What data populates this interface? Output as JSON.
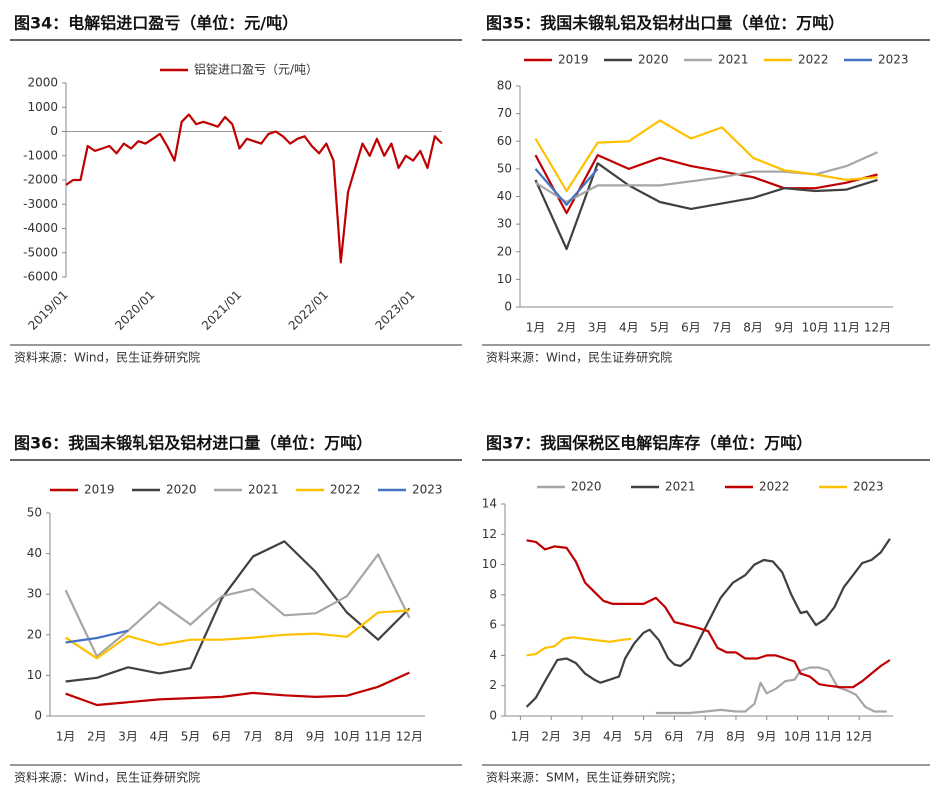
{
  "chart_data": [
    {
      "type": "line",
      "title": "图34：电解铝进口盈亏（单位：元/吨）",
      "source": "资料来源：Wind，民生证券研究院",
      "x": [
        "2019/01",
        "2019/02",
        "2019/03",
        "2019/04",
        "2019/05",
        "2019/06",
        "2019/07",
        "2019/08",
        "2019/09",
        "2019/10",
        "2019/11",
        "2019/12",
        "2020/01",
        "2020/02",
        "2020/03",
        "2020/04",
        "2020/05",
        "2020/06",
        "2020/07",
        "2020/08",
        "2020/09",
        "2020/10",
        "2020/11",
        "2020/12",
        "2021/01",
        "2021/02",
        "2021/03",
        "2021/04",
        "2021/05",
        "2021/06",
        "2021/07",
        "2021/08",
        "2021/09",
        "2021/10",
        "2021/11",
        "2021/12",
        "2022/01",
        "2022/02",
        "2022/03",
        "2022/04",
        "2022/05",
        "2022/06",
        "2022/07",
        "2022/08",
        "2022/09",
        "2022/10",
        "2022/11",
        "2022/12",
        "2023/01",
        "2023/02",
        "2023/03",
        "2023/04",
        "2023/05"
      ],
      "xticks": [
        "2019/01",
        "2020/01",
        "2021/01",
        "2022/01",
        "2023/01"
      ],
      "series": [
        {
          "name": "铝锭进口盈亏（元/吨）",
          "color": "#c00000",
          "values": [
            -2200,
            -2000,
            -2000,
            -600,
            -800,
            -700,
            -600,
            -900,
            -500,
            -700,
            -400,
            -500,
            -300,
            -100,
            -600,
            -1200,
            400,
            700,
            300,
            400,
            300,
            200,
            600,
            300,
            -700,
            -300,
            -400,
            -500,
            -100,
            0,
            -200,
            -500,
            -300,
            -200,
            -600,
            -900,
            -500,
            -1200,
            -5400,
            -2500,
            -1500,
            -500,
            -1000,
            -300,
            -1000,
            -500,
            -1500,
            -1000,
            -1200,
            -800,
            -1500,
            -200,
            -500
          ]
        }
      ],
      "ylim": [
        -6000,
        2000
      ],
      "yticks": [
        -6000,
        -5000,
        -4000,
        -3000,
        -2000,
        -1000,
        0,
        1000,
        2000
      ]
    },
    {
      "type": "line",
      "title": "图35：我国未锻轧铝及铝材出口量（单位：万吨）",
      "source": "资料来源：Wind，民生证券研究院",
      "categories": [
        "1月",
        "2月",
        "3月",
        "4月",
        "5月",
        "6月",
        "7月",
        "8月",
        "9月",
        "10月",
        "11月",
        "12月"
      ],
      "series": [
        {
          "name": "2019",
          "color": "#c00000",
          "values": [
            55,
            34,
            55,
            50,
            54,
            51,
            49,
            47,
            43,
            43,
            45,
            48
          ]
        },
        {
          "name": "2020",
          "color": "#404040",
          "values": [
            46,
            21,
            52,
            44,
            38,
            35.5,
            37.5,
            39.5,
            43,
            42,
            42.5,
            46
          ]
        },
        {
          "name": "2021",
          "color": "#a6a6a6",
          "values": [
            45,
            38,
            44,
            44,
            44,
            45.5,
            47,
            49,
            49,
            48,
            51,
            56
          ]
        },
        {
          "name": "2022",
          "color": "#ffc000",
          "values": [
            61,
            42,
            59.5,
            60,
            67.5,
            61,
            65,
            54,
            49.5,
            48,
            46,
            47
          ]
        },
        {
          "name": "2023",
          "color": "#4472c4",
          "values": [
            50,
            37,
            50,
            null,
            null,
            null,
            null,
            null,
            null,
            null,
            null,
            null
          ]
        }
      ],
      "ylim": [
        0,
        80
      ],
      "yticks": [
        0,
        10,
        20,
        30,
        40,
        50,
        60,
        70,
        80
      ]
    },
    {
      "type": "line",
      "title": "图36：我国未锻轧铝及铝材进口量（单位：万吨）",
      "source": "资料来源：Wind，民生证券研究院",
      "categories": [
        "1月",
        "2月",
        "3月",
        "4月",
        "5月",
        "6月",
        "7月",
        "8月",
        "9月",
        "10月",
        "11月",
        "12月"
      ],
      "series": [
        {
          "name": "2019",
          "color": "#c00000",
          "values": [
            5.5,
            2.7,
            3.4,
            4.1,
            4.4,
            4.7,
            5.7,
            5.1,
            4.7,
            5.0,
            7.2,
            10.7
          ]
        },
        {
          "name": "2020",
          "color": "#404040",
          "values": [
            8.5,
            9.4,
            12.0,
            10.5,
            11.8,
            29,
            39.3,
            43,
            35.5,
            25.5,
            18.8,
            26.5
          ]
        },
        {
          "name": "2021",
          "color": "#a6a6a6",
          "values": [
            31,
            14.7,
            21,
            28,
            22.5,
            29.5,
            31.3,
            24.8,
            25.3,
            29.5,
            39.8,
            24.2
          ]
        },
        {
          "name": "2022",
          "color": "#ffc000",
          "values": [
            19.3,
            14.2,
            19.7,
            17.5,
            18.8,
            18.8,
            19.3,
            20,
            20.3,
            19.5,
            25.5,
            26
          ]
        },
        {
          "name": "2023",
          "color": "#4472c4",
          "values": [
            18.1,
            19.2,
            21,
            null,
            null,
            null,
            null,
            null,
            null,
            null,
            null,
            null
          ]
        }
      ],
      "ylim": [
        0,
        50
      ],
      "yticks": [
        0,
        10,
        20,
        30,
        40,
        50
      ]
    },
    {
      "type": "line",
      "title": "图37：我国保税区电解铝库存（单位：万吨）",
      "source": "资料来源：SMM，民生证券研究院；",
      "xlim": [
        0.5,
        13.1
      ],
      "xticks": [
        {
          "value": 1,
          "label": "1月"
        },
        {
          "value": 2,
          "label": "2月"
        },
        {
          "value": 3,
          "label": "3月"
        },
        {
          "value": 4,
          "label": "4月"
        },
        {
          "value": 5,
          "label": "5月"
        },
        {
          "value": 6,
          "label": "6月"
        },
        {
          "value": 7,
          "label": "7月"
        },
        {
          "value": 8,
          "label": "8月"
        },
        {
          "value": 9,
          "label": "9月"
        },
        {
          "value": 10,
          "label": "10月"
        },
        {
          "value": 11,
          "label": "11月"
        },
        {
          "value": 12,
          "label": "12月"
        }
      ],
      "series": [
        {
          "name": "2020",
          "color": "#a6a6a6",
          "x": [
            5.4,
            6.0,
            6.5,
            7.0,
            7.5,
            8.0,
            8.3,
            8.6,
            8.8,
            9.0,
            9.3,
            9.6,
            9.9,
            10.1,
            10.4,
            10.7,
            11.0,
            11.3,
            11.6,
            11.9,
            12.2,
            12.5,
            12.9
          ],
          "values": [
            0.2,
            0.2,
            0.2,
            0.3,
            0.4,
            0.3,
            0.3,
            0.8,
            2.2,
            1.5,
            1.8,
            2.3,
            2.4,
            3.0,
            3.2,
            3.2,
            3.0,
            1.9,
            1.7,
            1.4,
            0.6,
            0.3,
            0.3
          ]
        },
        {
          "name": "2021",
          "color": "#404040",
          "x": [
            1.2,
            1.5,
            1.8,
            2.2,
            2.5,
            2.8,
            3.1,
            3.4,
            3.6,
            3.9,
            4.2,
            4.4,
            4.7,
            5.0,
            5.2,
            5.5,
            5.8,
            6.0,
            6.2,
            6.5,
            6.8,
            7.1,
            7.5,
            7.9,
            8.3,
            8.6,
            8.9,
            9.2,
            9.5,
            9.8,
            10.1,
            10.3,
            10.6,
            10.9,
            11.2,
            11.5,
            11.8,
            12.1,
            12.4,
            12.7,
            13.0
          ],
          "values": [
            0.6,
            1.2,
            2.3,
            3.7,
            3.8,
            3.5,
            2.8,
            2.4,
            2.2,
            2.4,
            2.6,
            3.8,
            4.8,
            5.5,
            5.7,
            5.0,
            3.8,
            3.4,
            3.3,
            3.8,
            5.0,
            6.2,
            7.8,
            8.8,
            9.3,
            10.0,
            10.3,
            10.2,
            9.5,
            8.0,
            6.8,
            6.9,
            6.0,
            6.4,
            7.2,
            8.5,
            9.3,
            10.1,
            10.3,
            10.8,
            11.7
          ]
        },
        {
          "name": "2022",
          "color": "#c00000",
          "x": [
            1.2,
            1.5,
            1.8,
            2.1,
            2.5,
            2.8,
            3.1,
            3.4,
            3.7,
            4.0,
            4.5,
            5.0,
            5.4,
            5.7,
            6.0,
            6.4,
            6.8,
            7.1,
            7.4,
            7.7,
            8.0,
            8.3,
            8.7,
            9.0,
            9.3,
            9.6,
            9.9,
            10.1,
            10.4,
            10.7,
            11.0,
            11.4,
            11.8,
            12.1,
            12.4,
            12.7,
            13.0
          ],
          "values": [
            11.6,
            11.5,
            11.0,
            11.2,
            11.1,
            10.2,
            8.8,
            8.2,
            7.6,
            7.4,
            7.4,
            7.4,
            7.8,
            7.2,
            6.2,
            6.0,
            5.8,
            5.6,
            4.5,
            4.2,
            4.2,
            3.8,
            3.8,
            4.0,
            4.0,
            3.8,
            3.6,
            2.8,
            2.6,
            2.1,
            2.0,
            1.9,
            1.9,
            2.3,
            2.8,
            3.3,
            3.7
          ]
        },
        {
          "name": "2023",
          "color": "#ffc000",
          "x": [
            1.2,
            1.5,
            1.8,
            2.1,
            2.4,
            2.7,
            3.1,
            3.5,
            3.9,
            4.2,
            4.6
          ],
          "values": [
            4.0,
            4.1,
            4.5,
            4.6,
            5.1,
            5.2,
            5.1,
            5.0,
            4.9,
            5.0,
            5.1
          ]
        }
      ],
      "ylim": [
        0,
        14
      ],
      "yticks": [
        0,
        2,
        4,
        6,
        8,
        10,
        12,
        14
      ]
    }
  ]
}
